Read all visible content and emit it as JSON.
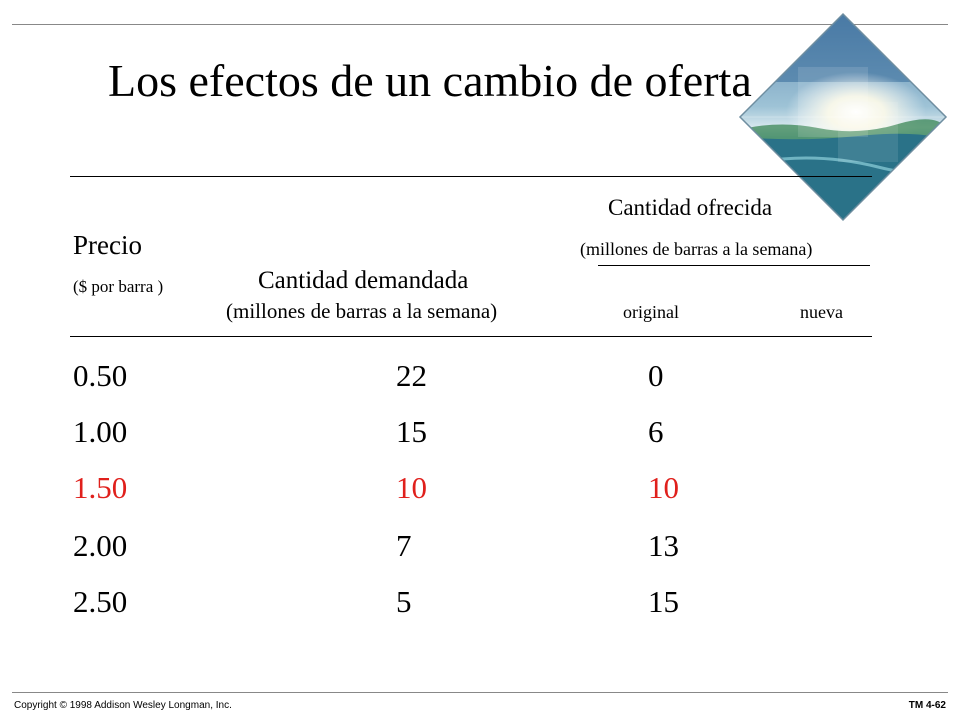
{
  "slide": {
    "title": "Los efectos de un cambio de oferta"
  },
  "header": {
    "precio": "Precio",
    "precio_unit": "($ por barra )",
    "demand_title": "Cantidad demandada",
    "demand_unit": "(millones de barras a la semana)",
    "supply_title": "Cantidad ofrecida",
    "supply_unit": "(millones de barras a la semana)",
    "col_original": "original",
    "col_nueva": "nueva"
  },
  "table": {
    "highlight_color": "#e0201c",
    "rows": [
      {
        "price": "0.50",
        "demanded": "22",
        "original": "0",
        "highlight": false
      },
      {
        "price": "1.00",
        "demanded": "15",
        "original": "6",
        "highlight": false
      },
      {
        "price": "1.50",
        "demanded": "10",
        "original": "10",
        "highlight": true
      },
      {
        "price": "2.00",
        "demanded": "7",
        "original": "13",
        "highlight": false
      },
      {
        "price": "2.50",
        "demanded": "5",
        "original": "15",
        "highlight": false
      }
    ]
  },
  "footer": {
    "copyright": "Copyright © 1998 Addison Wesley Longman, Inc.",
    "slide_id": "TM 4-62"
  },
  "decor": {
    "image": "beach-photo-diamond"
  }
}
